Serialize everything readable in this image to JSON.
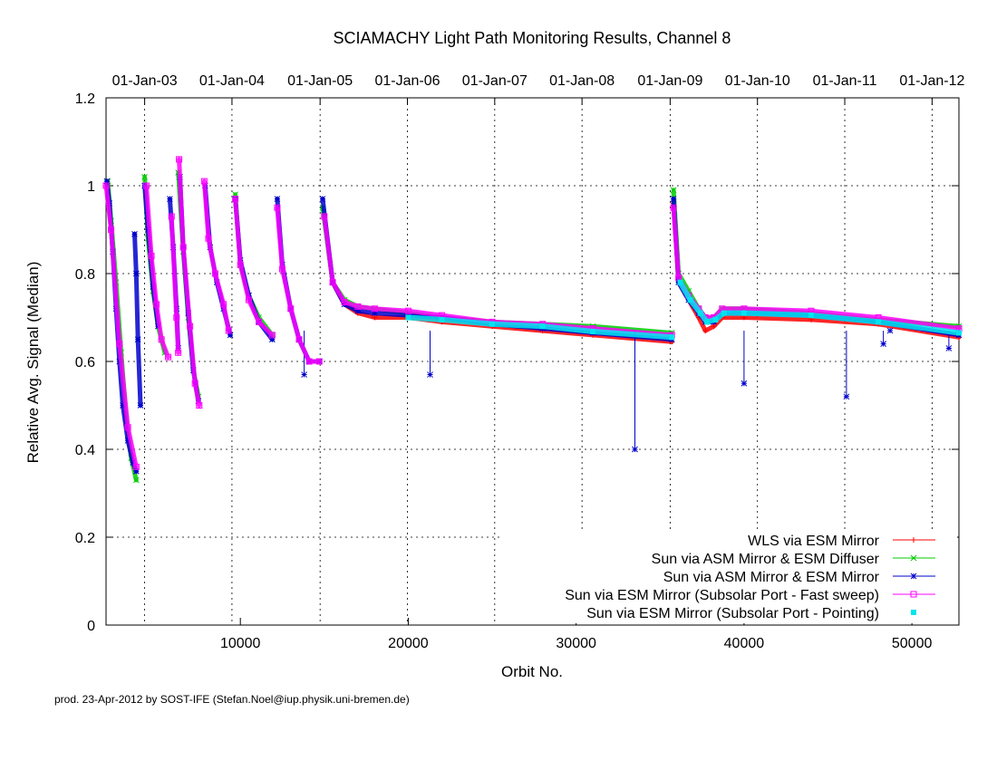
{
  "chart_data": {
    "type": "scatter",
    "title": "SCIAMACHY Light Path Monitoring Results, Channel 8",
    "xlabel": "Orbit No.",
    "ylabel": "Relative Avg. Signal (Median)",
    "xlim": [
      2000,
      52800
    ],
    "ylim": [
      0,
      1.2
    ],
    "x_ticks": [
      {
        "value": 10000,
        "label": "10000"
      },
      {
        "value": 20000,
        "label": "20000"
      },
      {
        "value": 30000,
        "label": "30000"
      },
      {
        "value": 40000,
        "label": "40000"
      },
      {
        "value": 50000,
        "label": "50000"
      }
    ],
    "y_ticks": [
      {
        "value": 0,
        "label": "0"
      },
      {
        "value": 0.2,
        "label": "0.2"
      },
      {
        "value": 0.4,
        "label": "0.4"
      },
      {
        "value": 0.6,
        "label": "0.6"
      },
      {
        "value": 0.8,
        "label": "0.8"
      },
      {
        "value": 1.0,
        "label": "1"
      },
      {
        "value": 1.2,
        "label": "1.2"
      }
    ],
    "date_ticks": [
      {
        "value": 4300,
        "label": "01-Jan-03"
      },
      {
        "value": 9500,
        "label": "01-Jan-04"
      },
      {
        "value": 14750,
        "label": "01-Jan-05"
      },
      {
        "value": 19950,
        "label": "01-Jan-06"
      },
      {
        "value": 25150,
        "label": "01-Jan-07"
      },
      {
        "value": 30350,
        "label": "01-Jan-08"
      },
      {
        "value": 35600,
        "label": "01-Jan-09"
      },
      {
        "value": 40800,
        "label": "01-Jan-10"
      },
      {
        "value": 46000,
        "label": "01-Jan-11"
      },
      {
        "value": 51200,
        "label": "01-Jan-12"
      }
    ],
    "grid": true,
    "legend_position": "bottom-right",
    "series": [
      {
        "name": "WLS via ESM Mirror",
        "color": "#ff0000",
        "marker": "plus",
        "segments": [
          [
            [
              15000,
              0.93
            ],
            [
              15500,
              0.78
            ],
            [
              16200,
              0.73
            ],
            [
              17000,
              0.71
            ],
            [
              18000,
              0.7
            ],
            [
              20000,
              0.7
            ],
            [
              22000,
              0.69
            ],
            [
              25000,
              0.68
            ],
            [
              28000,
              0.67
            ],
            [
              31000,
              0.66
            ],
            [
              35700,
              0.645
            ]
          ],
          [
            [
              35800,
              0.96
            ],
            [
              36100,
              0.78
            ],
            [
              36700,
              0.74
            ],
            [
              37300,
              0.7
            ],
            [
              37700,
              0.67
            ],
            [
              38200,
              0.68
            ],
            [
              38700,
              0.7
            ],
            [
              40000,
              0.7
            ],
            [
              44000,
              0.695
            ],
            [
              48000,
              0.685
            ],
            [
              52800,
              0.655
            ]
          ]
        ]
      },
      {
        "name": "Sun via ASM Mirror & ESM Diffuser",
        "color": "#00cc00",
        "marker": "cross",
        "segments": [
          [
            [
              2100,
              1.01
            ],
            [
              2300,
              0.92
            ],
            [
              2600,
              0.78
            ],
            [
              2900,
              0.62
            ],
            [
              3200,
              0.47
            ],
            [
              3500,
              0.38
            ],
            [
              3800,
              0.33
            ]
          ],
          [
            [
              4300,
              1.02
            ],
            [
              4500,
              0.88
            ],
            [
              4800,
              0.76
            ],
            [
              5100,
              0.68
            ],
            [
              5500,
              0.62
            ]
          ],
          [
            [
              6300,
              1.03
            ],
            [
              6600,
              0.85
            ],
            [
              6900,
              0.7
            ],
            [
              7200,
              0.58
            ],
            [
              7500,
              0.52
            ]
          ],
          [
            [
              9700,
              0.98
            ],
            [
              10000,
              0.82
            ],
            [
              10500,
              0.75
            ],
            [
              11100,
              0.7
            ],
            [
              11900,
              0.66
            ]
          ],
          [
            [
              14900,
              0.95
            ],
            [
              15500,
              0.78
            ],
            [
              16200,
              0.74
            ],
            [
              17000,
              0.725
            ],
            [
              18000,
              0.72
            ],
            [
              20000,
              0.71
            ],
            [
              22000,
              0.7
            ],
            [
              25000,
              0.69
            ],
            [
              28000,
              0.685
            ],
            [
              31000,
              0.68
            ],
            [
              35700,
              0.665
            ]
          ],
          [
            [
              35800,
              0.99
            ],
            [
              36100,
              0.8
            ],
            [
              36700,
              0.76
            ],
            [
              37300,
              0.72
            ],
            [
              37700,
              0.7
            ],
            [
              38200,
              0.7
            ],
            [
              38700,
              0.72
            ],
            [
              40000,
              0.72
            ],
            [
              44000,
              0.71
            ],
            [
              48000,
              0.695
            ],
            [
              52800,
              0.68
            ]
          ]
        ]
      },
      {
        "name": "Sun via ASM Mirror & ESM Mirror",
        "color": "#0000cc",
        "marker": "star",
        "segments": [
          [
            [
              2050,
              1.01
            ],
            [
              2200,
              0.96
            ],
            [
              2400,
              0.85
            ],
            [
              2600,
              0.72
            ],
            [
              2800,
              0.6
            ],
            [
              3000,
              0.5
            ],
            [
              3300,
              0.42
            ],
            [
              3600,
              0.37
            ],
            [
              3800,
              0.35
            ]
          ],
          [
            [
              3700,
              0.89
            ],
            [
              3800,
              0.8
            ],
            [
              3900,
              0.65
            ],
            [
              4050,
              0.5
            ]
          ],
          [
            [
              4300,
              1.0
            ],
            [
              4500,
              0.9
            ],
            [
              4800,
              0.77
            ],
            [
              5100,
              0.68
            ]
          ],
          [
            [
              5800,
              0.97
            ],
            [
              6000,
              0.86
            ],
            [
              6200,
              0.72
            ],
            [
              6300,
              0.63
            ]
          ],
          [
            [
              6400,
              1.02
            ],
            [
              6600,
              0.86
            ],
            [
              6900,
              0.71
            ],
            [
              7200,
              0.58
            ],
            [
              7500,
              0.51
            ]
          ],
          [
            [
              7900,
              1.0
            ],
            [
              8200,
              0.86
            ],
            [
              8600,
              0.78
            ],
            [
              9000,
              0.72
            ],
            [
              9400,
              0.66
            ]
          ],
          [
            [
              9700,
              0.97
            ],
            [
              10000,
              0.83
            ],
            [
              10500,
              0.75
            ],
            [
              11100,
              0.69
            ],
            [
              11900,
              0.65
            ]
          ],
          [
            [
              12200,
              0.97
            ],
            [
              12500,
              0.82
            ],
            [
              13000,
              0.72
            ],
            [
              13500,
              0.65
            ],
            [
              14100,
              0.6
            ],
            [
              14700,
              0.6
            ]
          ],
          [
            [
              14900,
              0.97
            ],
            [
              15500,
              0.78
            ],
            [
              16200,
              0.73
            ],
            [
              17000,
              0.715
            ],
            [
              18000,
              0.71
            ],
            [
              20000,
              0.705
            ],
            [
              22000,
              0.7
            ],
            [
              25000,
              0.685
            ],
            [
              28000,
              0.675
            ],
            [
              31000,
              0.665
            ],
            [
              35700,
              0.65
            ]
          ],
          [
            [
              35800,
              0.97
            ],
            [
              36100,
              0.78
            ],
            [
              36700,
              0.74
            ],
            [
              37300,
              0.71
            ],
            [
              37700,
              0.69
            ],
            [
              38200,
              0.69
            ],
            [
              38700,
              0.71
            ],
            [
              40000,
              0.71
            ],
            [
              44000,
              0.705
            ],
            [
              48000,
              0.69
            ],
            [
              52800,
              0.66
            ]
          ]
        ],
        "dropouts": [
          [
            13800,
            0.57
          ],
          [
            21300,
            0.57
          ],
          [
            33500,
            0.4
          ],
          [
            40000,
            0.55
          ],
          [
            46100,
            0.52
          ],
          [
            48300,
            0.64
          ],
          [
            48700,
            0.67
          ],
          [
            52200,
            0.63
          ]
        ]
      },
      {
        "name": "Sun via ESM Mirror (Subsolar Port - Fast sweep)",
        "color": "#ff00ff",
        "marker": "square",
        "segments": [
          [
            [
              2000,
              1.0
            ],
            [
              2300,
              0.9
            ],
            [
              2800,
              0.64
            ],
            [
              3300,
              0.45
            ],
            [
              3800,
              0.36
            ]
          ],
          [
            [
              4400,
              1.0
            ],
            [
              4700,
              0.84
            ],
            [
              5000,
              0.73
            ],
            [
              5300,
              0.65
            ],
            [
              5700,
              0.61
            ]
          ],
          [
            [
              5900,
              0.93
            ],
            [
              6200,
              0.7
            ],
            [
              6300,
              0.62
            ]
          ],
          [
            [
              6350,
              1.06
            ],
            [
              6600,
              0.86
            ],
            [
              7000,
              0.68
            ],
            [
              7300,
              0.55
            ],
            [
              7550,
              0.5
            ]
          ],
          [
            [
              7850,
              1.01
            ],
            [
              8100,
              0.88
            ],
            [
              8500,
              0.8
            ],
            [
              9000,
              0.73
            ],
            [
              9300,
              0.67
            ]
          ],
          [
            [
              9700,
              0.97
            ],
            [
              10000,
              0.82
            ],
            [
              10500,
              0.74
            ],
            [
              11100,
              0.69
            ],
            [
              11900,
              0.66
            ]
          ],
          [
            [
              12200,
              0.95
            ],
            [
              12500,
              0.81
            ],
            [
              13000,
              0.72
            ],
            [
              13500,
              0.65
            ],
            [
              14100,
              0.6
            ],
            [
              14700,
              0.6
            ]
          ],
          [
            [
              15000,
              0.93
            ],
            [
              15500,
              0.78
            ],
            [
              16200,
              0.735
            ],
            [
              17000,
              0.725
            ],
            [
              18000,
              0.72
            ],
            [
              20000,
              0.715
            ],
            [
              22000,
              0.705
            ],
            [
              25000,
              0.69
            ],
            [
              28000,
              0.685
            ],
            [
              31000,
              0.675
            ],
            [
              35700,
              0.66
            ]
          ],
          [
            [
              35800,
              0.95
            ],
            [
              36100,
              0.79
            ],
            [
              36700,
              0.75
            ],
            [
              37300,
              0.72
            ],
            [
              37700,
              0.7
            ],
            [
              38200,
              0.7
            ],
            [
              38700,
              0.72
            ],
            [
              40000,
              0.72
            ],
            [
              44000,
              0.715
            ],
            [
              48000,
              0.7
            ],
            [
              52800,
              0.675
            ]
          ]
        ]
      },
      {
        "name": "Sun via ESM Mirror (Subsolar Port - Pointing)",
        "color": "#00e5ee",
        "marker": "filled-square",
        "segments": [
          [
            [
              20000,
              0.7
            ],
            [
              22000,
              0.695
            ],
            [
              25000,
              0.685
            ],
            [
              28000,
              0.68
            ],
            [
              31000,
              0.668
            ],
            [
              35700,
              0.655
            ]
          ],
          [
            [
              36200,
              0.78
            ],
            [
              36800,
              0.74
            ],
            [
              37400,
              0.71
            ],
            [
              37800,
              0.69
            ],
            [
              38300,
              0.695
            ],
            [
              38800,
              0.71
            ],
            [
              40000,
              0.71
            ],
            [
              44000,
              0.705
            ],
            [
              48000,
              0.69
            ],
            [
              52800,
              0.665
            ]
          ]
        ]
      }
    ]
  },
  "footer": "prod. 23-Apr-2012 by SOST-IFE (Stefan.Noel@iup.physik.uni-bremen.de)"
}
